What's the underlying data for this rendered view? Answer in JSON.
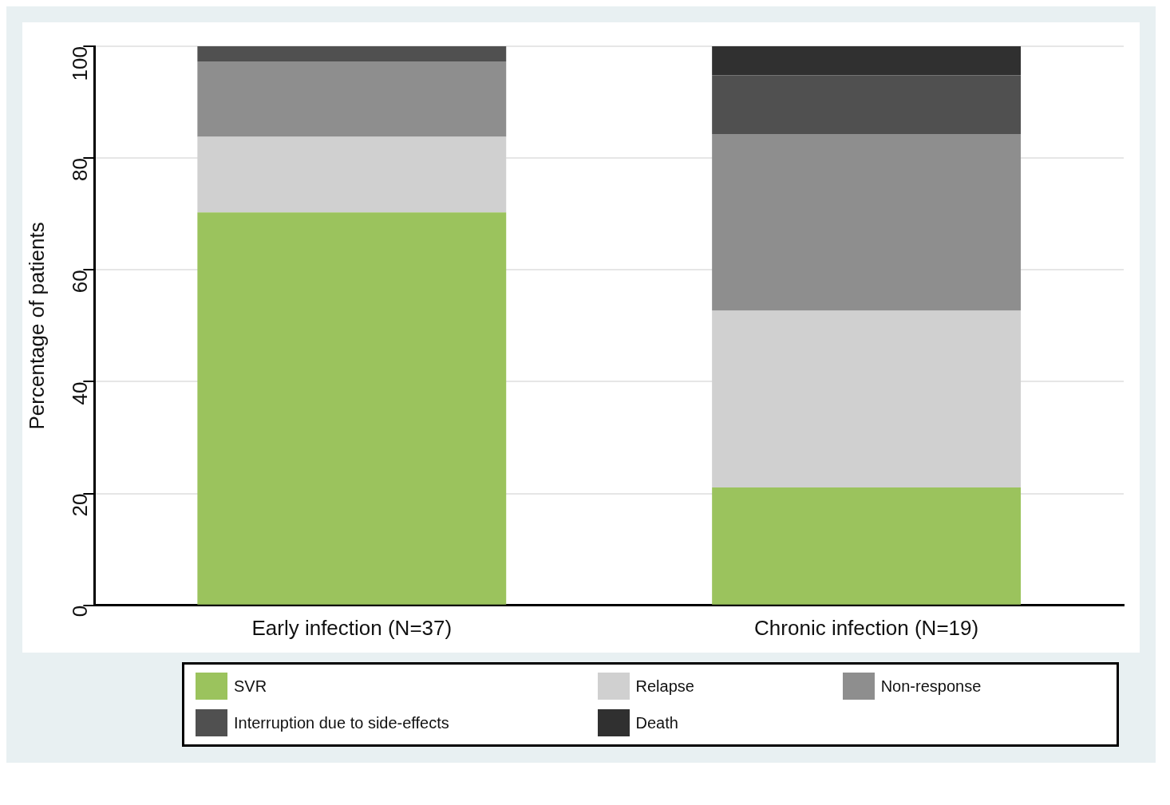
{
  "chart_data": {
    "type": "bar",
    "stacked": true,
    "ylabel": "Percentage of patients",
    "categories": [
      "Early infection (N=37)",
      "Chronic infection (N=19)"
    ],
    "series": [
      {
        "name": "SVR",
        "color": "#9bc35d",
        "values": [
          70.3,
          21.1
        ]
      },
      {
        "name": "Relapse",
        "color": "#d0d0d0",
        "values": [
          13.5,
          31.6
        ]
      },
      {
        "name": "Non-response",
        "color": "#8e8e8e",
        "values": [
          13.5,
          31.6
        ]
      },
      {
        "name": "Interruption due to side-effects",
        "color": "#505050",
        "values": [
          2.7,
          10.5
        ]
      },
      {
        "name": "Death",
        "color": "#303030",
        "values": [
          0,
          5.3
        ]
      }
    ],
    "ylim": [
      0,
      100
    ],
    "yticks": [
      0,
      20,
      40,
      60,
      80,
      100
    ],
    "grid": "y",
    "legend": "bottom"
  }
}
